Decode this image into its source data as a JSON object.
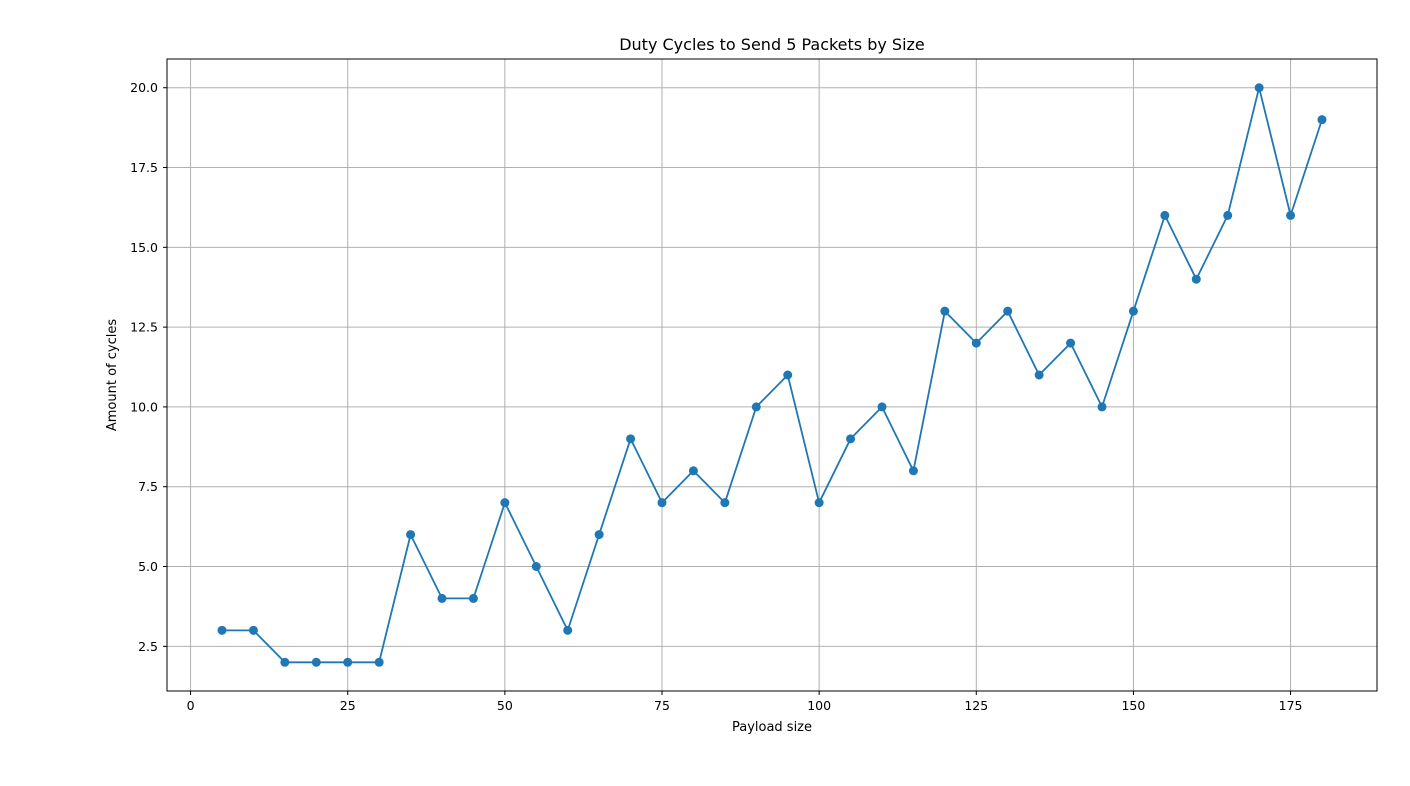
{
  "chart_data": {
    "type": "line",
    "title": "Duty Cycles to Send 5 Packets by Size",
    "xlabel": "Payload size",
    "ylabel": "Amount of cycles",
    "xlim": [
      -3.75,
      188.75
    ],
    "ylim": [
      1.1,
      20.9
    ],
    "x_ticks": [
      0,
      25,
      50,
      75,
      100,
      125,
      150,
      175
    ],
    "x_tick_labels": [
      "0",
      "25",
      "50",
      "75",
      "100",
      "125",
      "150",
      "175"
    ],
    "y_ticks": [
      2.5,
      5.0,
      7.5,
      10.0,
      12.5,
      15.0,
      17.5,
      20.0
    ],
    "y_tick_labels": [
      "2.5",
      "5.0",
      "7.5",
      "10.0",
      "12.5",
      "15.0",
      "17.5",
      "20.0"
    ],
    "grid": true,
    "marker": "circle",
    "color": "#1f77b4",
    "series": [
      {
        "x": [
          5,
          10,
          15,
          20,
          25,
          30,
          35,
          40,
          45,
          50,
          55,
          60,
          65,
          70,
          75,
          80,
          85,
          90,
          95,
          100,
          105,
          110,
          115,
          120,
          125,
          130,
          135,
          140,
          145,
          150,
          155,
          160,
          165,
          170,
          175,
          180
        ],
        "values": [
          3,
          3,
          2,
          2,
          2,
          2,
          6,
          4,
          4,
          7,
          5,
          3,
          6,
          9,
          7,
          8,
          7,
          10,
          11,
          7,
          9,
          10,
          8,
          13,
          12,
          13,
          11,
          12,
          10,
          13,
          16,
          14,
          16,
          20,
          16,
          19
        ]
      }
    ]
  }
}
